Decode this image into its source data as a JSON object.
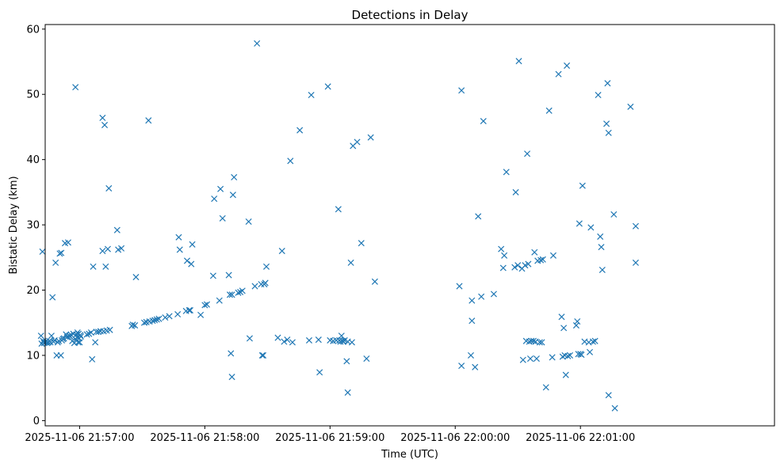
{
  "chart_data": {
    "type": "scatter",
    "title": "Detections in Delay",
    "xlabel": "Time (UTC)",
    "ylabel": "Bistatic Delay (km)",
    "marker": "x",
    "color": "#1f77b4",
    "xlim_seconds": [
      -16.5,
      333
    ],
    "ylim": [
      -0.8,
      60.7
    ],
    "x_ticks": [
      {
        "value": 0,
        "label": "2025-11-06 21:57:00"
      },
      {
        "value": 60,
        "label": "2025-11-06 21:58:00"
      },
      {
        "value": 120,
        "label": "2025-11-06 21:59:00"
      },
      {
        "value": 180,
        "label": "2025-11-06 22:00:00"
      },
      {
        "value": 240,
        "label": "2025-11-06 22:01:00"
      }
    ],
    "y_ticks": [
      {
        "value": 0,
        "label": "0"
      },
      {
        "value": 10,
        "label": "10"
      },
      {
        "value": 20,
        "label": "20"
      },
      {
        "value": 30,
        "label": "30"
      },
      {
        "value": 40,
        "label": "40"
      },
      {
        "value": 50,
        "label": "50"
      },
      {
        "value": 60,
        "label": "60"
      }
    ],
    "x_unit": "seconds after 2025-11-06 21:57:00 UTC",
    "points": [
      [
        -18.5,
        13.0
      ],
      [
        -18.2,
        11.8
      ],
      [
        -17.8,
        25.9
      ],
      [
        -17.5,
        12.2
      ],
      [
        -17.0,
        11.9
      ],
      [
        -16.5,
        12.0
      ],
      [
        -16.0,
        12.1
      ],
      [
        -15.5,
        11.9
      ],
      [
        -15.0,
        12.0
      ],
      [
        -14.5,
        12.2
      ],
      [
        -14.0,
        12.0
      ],
      [
        -13.5,
        13.0
      ],
      [
        -13.0,
        18.9
      ],
      [
        -12.5,
        12.1
      ],
      [
        -12.0,
        12.3
      ],
      [
        -11.5,
        24.2
      ],
      [
        -11.0,
        10.0
      ],
      [
        -10.5,
        12.0
      ],
      [
        -10.0,
        12.2
      ],
      [
        -9.5,
        25.6
      ],
      [
        -9.0,
        10.0
      ],
      [
        -8.8,
        25.7
      ],
      [
        -8.5,
        12.3
      ],
      [
        -8.0,
        12.5
      ],
      [
        -7.5,
        12.6
      ],
      [
        -7.0,
        27.2
      ],
      [
        -6.5,
        13.2
      ],
      [
        -6.0,
        12.8
      ],
      [
        -5.5,
        27.3
      ],
      [
        -5.0,
        13.0
      ],
      [
        -4.5,
        12.9
      ],
      [
        -4.0,
        13.1
      ],
      [
        -3.5,
        12.2
      ],
      [
        -3.0,
        13.3
      ],
      [
        -2.5,
        11.9
      ],
      [
        -2.0,
        51.1
      ],
      [
        -1.8,
        12.4
      ],
      [
        -1.5,
        13.2
      ],
      [
        -1.2,
        12.8
      ],
      [
        -1.0,
        13.5
      ],
      [
        -0.7,
        12.0
      ],
      [
        -0.5,
        13.3
      ],
      [
        -0.2,
        12.6
      ],
      [
        0.0,
        12.0
      ],
      [
        0.3,
        13.1
      ],
      [
        0.6,
        12.9
      ],
      [
        3.5,
        13.2
      ],
      [
        4.5,
        13.3
      ],
      [
        5.5,
        13.5
      ],
      [
        6.0,
        9.4
      ],
      [
        6.5,
        23.6
      ],
      [
        7.5,
        12.0
      ],
      [
        8.0,
        13.6
      ],
      [
        9.0,
        13.6
      ],
      [
        10.0,
        13.7
      ],
      [
        11.0,
        26.0
      ],
      [
        11.0,
        46.4
      ],
      [
        11.5,
        13.7
      ],
      [
        12.0,
        45.3
      ],
      [
        12.5,
        23.6
      ],
      [
        13.0,
        13.8
      ],
      [
        13.5,
        26.3
      ],
      [
        14.0,
        35.6
      ],
      [
        14.5,
        13.9
      ],
      [
        18.0,
        29.2
      ],
      [
        18.5,
        26.2
      ],
      [
        20.0,
        26.4
      ],
      [
        25.0,
        14.5
      ],
      [
        25.5,
        14.7
      ],
      [
        26.5,
        14.6
      ],
      [
        27.0,
        22.0
      ],
      [
        31.0,
        15.0
      ],
      [
        32.0,
        15.1
      ],
      [
        33.0,
        46.0
      ],
      [
        33.5,
        15.2
      ],
      [
        35.0,
        15.3
      ],
      [
        36.0,
        15.4
      ],
      [
        37.0,
        15.5
      ],
      [
        38.0,
        15.6
      ],
      [
        41.0,
        15.8
      ],
      [
        43.0,
        16.0
      ],
      [
        47.0,
        16.3
      ],
      [
        47.5,
        28.1
      ],
      [
        48.0,
        26.2
      ],
      [
        51.0,
        16.8
      ],
      [
        51.5,
        24.5
      ],
      [
        52.5,
        16.9
      ],
      [
        53.0,
        16.9
      ],
      [
        53.5,
        24.0
      ],
      [
        54.0,
        27.0
      ],
      [
        58.0,
        16.2
      ],
      [
        60.0,
        17.7
      ],
      [
        61.0,
        17.8
      ],
      [
        64.0,
        22.2
      ],
      [
        64.5,
        34.0
      ],
      [
        67.0,
        18.4
      ],
      [
        67.5,
        35.5
      ],
      [
        68.5,
        31.0
      ],
      [
        71.5,
        22.3
      ],
      [
        72.0,
        19.3
      ],
      [
        72.5,
        10.3
      ],
      [
        73.0,
        6.7
      ],
      [
        73.0,
        19.3
      ],
      [
        73.5,
        34.6
      ],
      [
        74.0,
        37.3
      ],
      [
        76.0,
        19.6
      ],
      [
        77.0,
        19.7
      ],
      [
        78.0,
        19.9
      ],
      [
        81.0,
        30.5
      ],
      [
        81.5,
        12.6
      ],
      [
        84.0,
        20.6
      ],
      [
        85.0,
        57.8
      ],
      [
        87.0,
        20.9
      ],
      [
        87.5,
        10.0
      ],
      [
        88.0,
        10.0
      ],
      [
        88.5,
        20.9
      ],
      [
        89.0,
        21.1
      ],
      [
        89.5,
        23.6
      ],
      [
        95.0,
        12.7
      ],
      [
        97.0,
        26.0
      ],
      [
        98.0,
        12.1
      ],
      [
        99.5,
        12.4
      ],
      [
        101.0,
        39.8
      ],
      [
        102.0,
        12.0
      ],
      [
        105.5,
        44.5
      ],
      [
        110.0,
        12.3
      ],
      [
        111.0,
        49.9
      ],
      [
        114.5,
        12.4
      ],
      [
        115.0,
        7.4
      ],
      [
        119.0,
        51.2
      ],
      [
        120.0,
        12.3
      ],
      [
        121.5,
        12.2
      ],
      [
        123.0,
        12.3
      ],
      [
        124.0,
        32.4
      ],
      [
        124.5,
        12.3
      ],
      [
        125.0,
        12.1
      ],
      [
        125.5,
        13.0
      ],
      [
        126.0,
        12.2
      ],
      [
        126.5,
        12.1
      ],
      [
        127.0,
        12.3
      ],
      [
        128.0,
        9.1
      ],
      [
        128.5,
        12.1
      ],
      [
        128.5,
        4.3
      ],
      [
        130.0,
        24.2
      ],
      [
        130.5,
        12.0
      ],
      [
        131.0,
        42.1
      ],
      [
        133.0,
        42.7
      ],
      [
        135.0,
        27.2
      ],
      [
        137.5,
        9.5
      ],
      [
        139.5,
        43.4
      ],
      [
        141.5,
        21.3
      ],
      [
        182.0,
        20.6
      ],
      [
        183.0,
        50.6
      ],
      [
        183.0,
        8.4
      ],
      [
        187.5,
        10.0
      ],
      [
        188.0,
        15.3
      ],
      [
        188.0,
        18.4
      ],
      [
        189.5,
        8.2
      ],
      [
        191.0,
        31.3
      ],
      [
        192.5,
        19.0
      ],
      [
        193.5,
        45.9
      ],
      [
        198.5,
        19.4
      ],
      [
        202.0,
        26.3
      ],
      [
        203.0,
        23.4
      ],
      [
        203.5,
        25.3
      ],
      [
        204.5,
        38.1
      ],
      [
        208.5,
        23.5
      ],
      [
        209.0,
        35.0
      ],
      [
        210.0,
        23.8
      ],
      [
        210.5,
        55.1
      ],
      [
        212.0,
        23.3
      ],
      [
        212.5,
        9.3
      ],
      [
        213.5,
        23.8
      ],
      [
        214.0,
        12.2
      ],
      [
        214.5,
        40.9
      ],
      [
        215.0,
        24.0
      ],
      [
        215.5,
        12.1
      ],
      [
        216.0,
        9.5
      ],
      [
        216.5,
        12.2
      ],
      [
        217.5,
        12.2
      ],
      [
        218.0,
        25.8
      ],
      [
        218.5,
        12.1
      ],
      [
        219.0,
        9.5
      ],
      [
        219.5,
        24.5
      ],
      [
        220.5,
        12.0
      ],
      [
        221.0,
        24.6
      ],
      [
        221.5,
        12.0
      ],
      [
        222.0,
        24.7
      ],
      [
        223.5,
        5.1
      ],
      [
        225.0,
        47.5
      ],
      [
        226.5,
        9.7
      ],
      [
        227.0,
        25.3
      ],
      [
        229.5,
        53.1
      ],
      [
        231.0,
        15.9
      ],
      [
        231.5,
        9.8
      ],
      [
        232.0,
        14.2
      ],
      [
        232.5,
        10.0
      ],
      [
        233.0,
        7.0
      ],
      [
        233.5,
        54.4
      ],
      [
        234.0,
        9.9
      ],
      [
        235.0,
        10.0
      ],
      [
        238.0,
        14.6
      ],
      [
        238.5,
        15.2
      ],
      [
        239.0,
        10.2
      ],
      [
        239.5,
        30.2
      ],
      [
        240.0,
        10.2
      ],
      [
        240.5,
        10.1
      ],
      [
        241.0,
        36.0
      ],
      [
        242.0,
        12.1
      ],
      [
        244.0,
        12.0
      ],
      [
        244.5,
        10.5
      ],
      [
        245.0,
        29.6
      ],
      [
        246.0,
        12.1
      ],
      [
        247.0,
        12.2
      ],
      [
        248.5,
        49.9
      ],
      [
        249.5,
        28.2
      ],
      [
        250.0,
        26.6
      ],
      [
        250.5,
        23.1
      ],
      [
        252.5,
        45.5
      ],
      [
        253.0,
        51.7
      ],
      [
        253.5,
        44.1
      ],
      [
        253.5,
        3.9
      ],
      [
        256.0,
        31.6
      ],
      [
        256.5,
        1.9
      ],
      [
        264.0,
        48.1
      ],
      [
        266.5,
        29.8
      ],
      [
        266.5,
        24.2
      ]
    ]
  }
}
